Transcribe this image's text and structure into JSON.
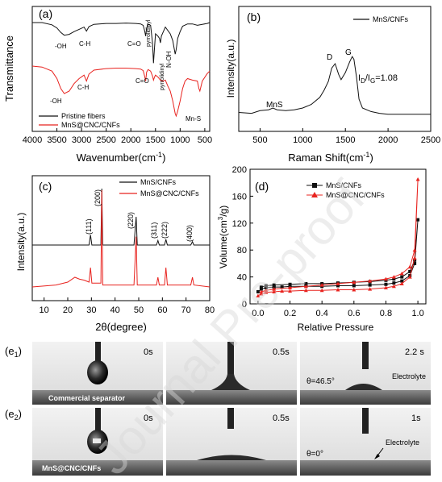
{
  "watermark": "Journal Pre-proof",
  "chart_data": [
    {
      "panel": "(a)",
      "type": "line",
      "xlabel": "Wavenumber(cm",
      "xlabel_sup": "-1",
      "xlabel_tail": ")",
      "ylabel": "Transmittance",
      "xlim": [
        4000,
        400
      ],
      "xticks": [
        "4000",
        "3500",
        "3000",
        "2500",
        "2000",
        "1500",
        "1000",
        "500"
      ],
      "series": [
        {
          "name": "Pristine fibers",
          "color": "#111111",
          "x": [
            4000,
            3800,
            3600,
            3500,
            3420,
            3350,
            3250,
            3150,
            3050,
            2950,
            2900,
            2850,
            2750,
            2500,
            2300,
            2100,
            1900,
            1800,
            1750,
            1720,
            1700,
            1680,
            1650,
            1600,
            1560,
            1540,
            1520,
            1500,
            1450,
            1420,
            1400,
            1380,
            1300,
            1200,
            1150,
            1100,
            1080,
            1050,
            1000,
            950,
            850,
            750,
            650,
            550,
            450,
            400
          ],
          "y": [
            0.0,
            0.0,
            -0.05,
            -0.12,
            -0.22,
            -0.28,
            -0.26,
            -0.2,
            -0.15,
            -0.1,
            -0.19,
            -0.09,
            -0.04,
            -0.02,
            -0.02,
            -0.01,
            -0.02,
            -0.03,
            -0.06,
            -0.18,
            -0.3,
            -0.12,
            -0.04,
            -0.06,
            -0.45,
            -0.9,
            -0.55,
            -0.25,
            -0.3,
            -0.35,
            -0.45,
            -0.3,
            -0.1,
            -0.25,
            -0.4,
            -0.7,
            -0.6,
            -0.35,
            -0.2,
            -0.08,
            -0.03,
            -0.03,
            -0.06,
            -0.04,
            -0.02,
            0.0
          ]
        },
        {
          "name": "MnS@CNC/CNFs",
          "color": "#e8231f",
          "x": [
            4000,
            3800,
            3600,
            3500,
            3420,
            3350,
            3250,
            3150,
            3050,
            2950,
            2900,
            2850,
            2750,
            2500,
            2300,
            2100,
            1900,
            1800,
            1750,
            1720,
            1700,
            1680,
            1650,
            1600,
            1560,
            1540,
            1520,
            1500,
            1450,
            1400,
            1350,
            1300,
            1250,
            1200,
            1150,
            1100,
            1080,
            1050,
            1000,
            950,
            900,
            850,
            750,
            650,
            620,
            600,
            550,
            450,
            400
          ],
          "y": [
            0.0,
            -0.02,
            -0.1,
            -0.25,
            -0.45,
            -0.55,
            -0.5,
            -0.35,
            -0.25,
            -0.18,
            -0.3,
            -0.16,
            -0.08,
            -0.05,
            -0.04,
            -0.04,
            -0.05,
            -0.06,
            -0.09,
            -0.2,
            -0.3,
            -0.12,
            -0.07,
            -0.1,
            -0.2,
            -0.28,
            -0.22,
            -0.18,
            -0.22,
            -0.28,
            -0.3,
            -0.28,
            -0.4,
            -0.5,
            -0.7,
            -0.95,
            -1.0,
            -0.9,
            -0.7,
            -0.45,
            -0.3,
            -0.25,
            -0.28,
            -0.3,
            -0.45,
            -0.5,
            -0.3,
            -0.15,
            -0.1
          ]
        }
      ],
      "annotations": [
        "-OH",
        "C-H",
        "C=O",
        "pyrrolidinyl",
        "N-OH",
        "-OH",
        "C-H",
        "C=O",
        "pyrrolidinyl",
        "Mn-S"
      ]
    },
    {
      "panel": "(b)",
      "type": "line",
      "xlabel": "Raman Shift(cm",
      "xlabel_sup": "-1",
      "xlabel_tail": ")",
      "ylabel": "Intensity(a.u.)",
      "xlim": [
        250,
        2500
      ],
      "xticks": [
        "500",
        "1000",
        "1500",
        "2000",
        "2500"
      ],
      "series": [
        {
          "name": "MnS/CNFs",
          "color": "#111111",
          "x": [
            250,
            400,
            500,
            600,
            650,
            700,
            800,
            900,
            1000,
            1100,
            1200,
            1250,
            1300,
            1340,
            1380,
            1420,
            1450,
            1500,
            1550,
            1580,
            1600,
            1630,
            1660,
            1700,
            1800,
            1900,
            2000,
            2200,
            2500
          ],
          "y": [
            0.05,
            0.04,
            0.07,
            0.08,
            0.1,
            0.08,
            0.07,
            0.08,
            0.1,
            0.14,
            0.22,
            0.3,
            0.4,
            0.55,
            0.6,
            0.48,
            0.42,
            0.5,
            0.62,
            0.68,
            0.65,
            0.45,
            0.2,
            0.1,
            0.06,
            0.04,
            0.03,
            0.03,
            0.03
          ]
        }
      ],
      "annotations": [
        "MnS",
        "D",
        "G"
      ],
      "ratio_label": "I",
      "ratio_sub1": "D",
      "ratio_mid": "/I",
      "ratio_sub2": "G",
      "ratio_value": "=1.08"
    },
    {
      "panel": "(c)",
      "type": "line",
      "xlabel": "2θ(degree)",
      "ylabel": "Intensity(a.u.)",
      "xlim": [
        5,
        80
      ],
      "xticks": [
        "10",
        "20",
        "30",
        "40",
        "50",
        "60",
        "70",
        "80"
      ],
      "series": [
        {
          "name": "MnS/CNFs",
          "color": "#111111",
          "x": [
            5,
            15,
            25,
            29,
            29.6,
            30.2,
            33,
            34,
            34.4,
            34.8,
            36,
            48,
            48.9,
            49.4,
            49.9,
            52,
            57.5,
            58.1,
            58.7,
            60.9,
            61.5,
            62.1,
            65,
            72,
            72.7,
            73.3,
            80
          ],
          "y": [
            0.0,
            0.0,
            0.0,
            0.0,
            0.18,
            0.0,
            0.0,
            0.0,
            1.0,
            0.0,
            0.0,
            0.0,
            0.5,
            0.0,
            0.0,
            0.0,
            0.0,
            0.08,
            0.0,
            0.0,
            0.1,
            0.0,
            0.0,
            0.0,
            0.06,
            0.0,
            0.0
          ]
        },
        {
          "name": "MnS@CNC/CNFs",
          "color": "#e8231f",
          "x": [
            5,
            15,
            20,
            23,
            25,
            27,
            29,
            29.6,
            30.2,
            33,
            34,
            34.4,
            34.8,
            36,
            48,
            48.9,
            49.4,
            49.9,
            52,
            57.5,
            58.1,
            58.7,
            60.9,
            61.5,
            62.1,
            65,
            72,
            72.7,
            73.3,
            80
          ],
          "y": [
            0.0,
            0.02,
            0.05,
            0.1,
            0.08,
            0.07,
            0.05,
            0.2,
            0.04,
            0.04,
            0.04,
            1.0,
            0.02,
            0.02,
            0.02,
            0.52,
            0.02,
            0.02,
            0.02,
            0.02,
            0.1,
            0.02,
            0.02,
            0.2,
            0.02,
            0.02,
            0.02,
            0.1,
            0.02,
            0.0
          ]
        }
      ],
      "peak_labels": [
        "(111)",
        "(200)",
        "(220)",
        "(311)",
        "(222)",
        "(400)"
      ]
    },
    {
      "panel": "(d)",
      "type": "line",
      "xlabel": "Relative Pressure",
      "ylabel": "Volume(cm",
      "ylabel_sup": "3",
      "ylabel_tail": "/g)",
      "xlim": [
        -0.05,
        1.05
      ],
      "ylim": [
        0,
        200
      ],
      "xticks": [
        "0.0",
        "0.2",
        "0.4",
        "0.6",
        "0.8",
        "1.0"
      ],
      "yticks": [
        "0",
        "40",
        "80",
        "120",
        "160",
        "200"
      ],
      "series": [
        {
          "name": "MnS/CNFs",
          "color": "#111111",
          "marker": "square",
          "x": [
            0.0,
            0.02,
            0.05,
            0.1,
            0.15,
            0.2,
            0.3,
            0.4,
            0.5,
            0.6,
            0.7,
            0.8,
            0.85,
            0.9,
            0.95,
            0.98,
            1.0,
            0.98,
            0.95,
            0.9,
            0.85,
            0.8,
            0.7,
            0.6,
            0.5,
            0.4,
            0.3,
            0.2,
            0.1,
            0.05,
            0.02
          ],
          "y": [
            18,
            22,
            24,
            25,
            25,
            26,
            26,
            26,
            27,
            27,
            28,
            29,
            31,
            34,
            42,
            60,
            125,
            65,
            48,
            40,
            37,
            35,
            33,
            32,
            31,
            30,
            30,
            29,
            28,
            27,
            25
          ]
        },
        {
          "name": "MnS@CNC/CNFs",
          "color": "#e8231f",
          "marker": "triangle",
          "x": [
            0.0,
            0.02,
            0.05,
            0.1,
            0.15,
            0.2,
            0.3,
            0.4,
            0.5,
            0.6,
            0.7,
            0.8,
            0.85,
            0.9,
            0.95,
            0.98,
            1.0,
            0.98,
            0.95,
            0.9,
            0.85,
            0.8,
            0.7,
            0.6,
            0.5,
            0.4,
            0.3,
            0.2,
            0.1,
            0.05,
            0.02
          ],
          "y": [
            12,
            15,
            17,
            18,
            19,
            19,
            20,
            20,
            21,
            21,
            22,
            24,
            26,
            30,
            40,
            68,
            185,
            80,
            55,
            45,
            40,
            37,
            34,
            32,
            30,
            28,
            26,
            24,
            22,
            20,
            18
          ]
        }
      ]
    }
  ],
  "photo_panels": {
    "row1_label_pre": "(e",
    "row1_label_sub": "1",
    "row1_label_post": ")",
    "row2_label_pre": "(e",
    "row2_label_sub": "2",
    "row2_label_post": ")",
    "row1": [
      {
        "time": "0s",
        "caption": "Commercial separator"
      },
      {
        "time": "0.5s"
      },
      {
        "time": "2.2 s",
        "angle": "θ=46.5°",
        "electrolyte": "Electrolyte"
      }
    ],
    "row2": [
      {
        "time": "0s",
        "caption": "MnS@CNC/CNFs"
      },
      {
        "time": "0.5s"
      },
      {
        "time": "1s",
        "angle": "θ=0°",
        "electrolyte": "Electrolyte"
      }
    ]
  }
}
